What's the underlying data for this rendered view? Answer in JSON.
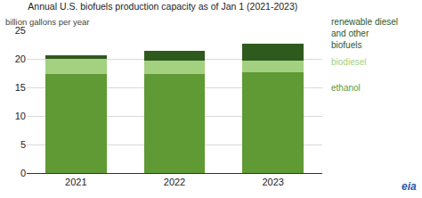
{
  "chart_data": {
    "type": "bar",
    "stacked": true,
    "title": "Annual U.S. biofuels production capacity as of Jan 1 (2021-2023)",
    "subtitle": "billion gallons per year",
    "logo": "eia",
    "categories": [
      "2021",
      "2022",
      "2023"
    ],
    "series": [
      {
        "name": "ethanol",
        "color": "#5f9a35",
        "values": [
          17.4,
          17.3,
          17.6
        ]
      },
      {
        "name": "biodiesel",
        "color": "#a3d17f",
        "values": [
          2.6,
          2.4,
          2.1
        ]
      },
      {
        "name": "renewable diesel and other biofuels",
        "color": "#2f5a1e",
        "values": [
          0.7,
          1.7,
          3.0
        ]
      }
    ],
    "ylim": [
      0,
      25
    ],
    "yticks": [
      0,
      5,
      10,
      15,
      20,
      25
    ],
    "grid": true
  }
}
